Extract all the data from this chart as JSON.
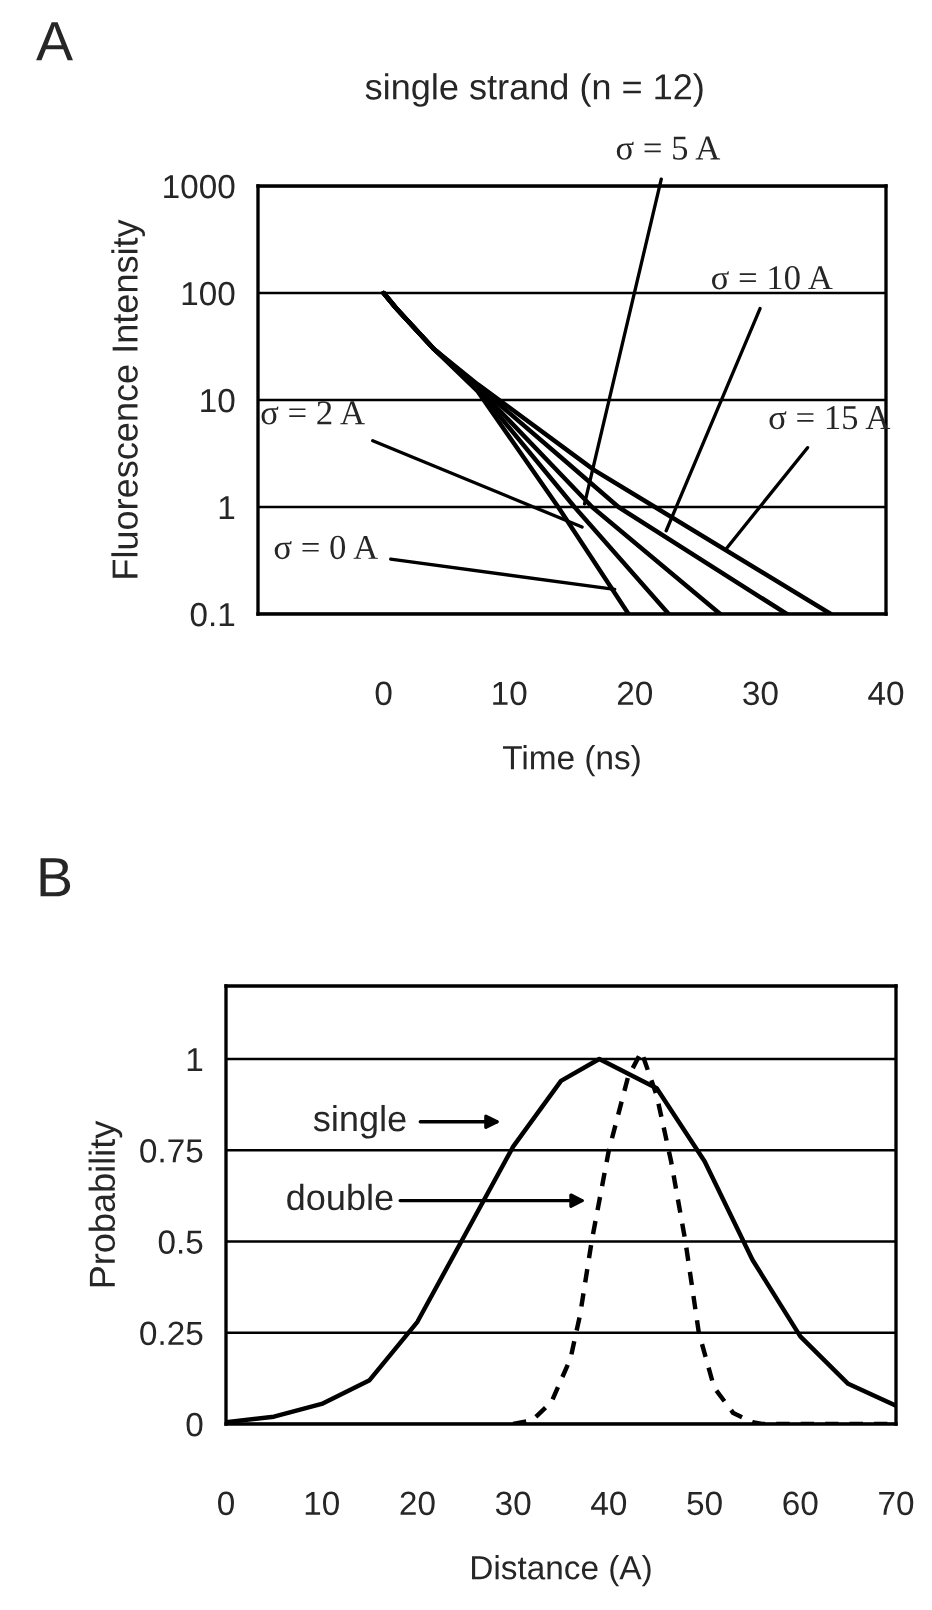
{
  "chart_data": [
    {
      "type": "line",
      "title": "A",
      "subtitle": "single strand (n = 12)",
      "xlabel": "Time (ns)",
      "ylabel": "Fluorescence Intensity",
      "log": "y",
      "xlim": [
        -10,
        40
      ],
      "xticks": [
        0,
        10,
        20,
        30,
        40
      ],
      "ylim": [
        0.1,
        1000
      ],
      "yticks": [
        0.1,
        1,
        10,
        100,
        1000
      ],
      "grid": "y",
      "line_style": "solid",
      "series": [
        {
          "color": "#000000",
          "x": [
            0,
            1,
            4,
            7.5,
            13.9,
            19.5
          ],
          "values": [
            100,
            72,
            30,
            12,
            1,
            0.1
          ]
        },
        {
          "color": "#000000",
          "x": [
            0,
            1,
            4,
            7.5,
            15.2,
            22.7
          ],
          "values": [
            100,
            72,
            30,
            12.5,
            1,
            0.1
          ]
        },
        {
          "color": "#000000",
          "x": [
            0,
            1,
            4,
            7.5,
            16.6,
            26.8
          ],
          "values": [
            100,
            72,
            30,
            13,
            1,
            0.1
          ]
        },
        {
          "color": "#000000",
          "x": [
            0,
            1,
            4,
            7.5,
            14,
            18.7,
            32.1
          ],
          "values": [
            100,
            72,
            30,
            13.5,
            3,
            1,
            0.1
          ]
        },
        {
          "color": "#000000",
          "x": [
            0,
            1,
            4,
            7.5,
            16.8,
            21.6,
            35.6
          ],
          "values": [
            100,
            72,
            30,
            14,
            2.2,
            1,
            0.1
          ]
        }
      ],
      "annotations": [
        {
          "text": "σ = 5 A",
          "x": 16,
          "y": 1.07
        },
        {
          "text": "σ = 10 A",
          "x": 22.5,
          "y": 0.6
        },
        {
          "text": "σ = 15 A",
          "x": 27.3,
          "y": 0.41
        },
        {
          "text": "σ = 2 A",
          "x": 15.8,
          "y": 0.65
        },
        {
          "text": "σ = 0 A",
          "x": 18.4,
          "y": 0.17
        }
      ]
    },
    {
      "type": "line",
      "title": "B",
      "xlabel": "Distance (A)",
      "ylabel": "Probability",
      "xlim": [
        0,
        70
      ],
      "xticks": [
        0,
        10,
        20,
        30,
        40,
        50,
        60,
        70
      ],
      "ylim": [
        0,
        1.2
      ],
      "yticks": [
        0,
        0.25,
        0.5,
        0.75,
        1
      ],
      "grid": "y",
      "series": [
        {
          "color": "#000000",
          "line_style": "solid",
          "x": [
            0,
            5,
            10,
            15,
            20,
            25,
            30,
            35,
            39,
            45,
            50,
            55,
            60,
            65,
            70
          ],
          "values": [
            0.005,
            0.02,
            0.055,
            0.12,
            0.28,
            0.52,
            0.76,
            0.94,
            1.0,
            0.92,
            0.72,
            0.45,
            0.24,
            0.11,
            0.05
          ]
        },
        {
          "color": "#000000",
          "line_style": "dashed",
          "x": [
            30,
            32,
            34,
            36,
            37,
            38.2,
            40,
            42,
            43.4,
            45,
            46.5,
            48,
            49.4,
            51,
            53,
            55,
            56,
            70
          ],
          "values": [
            0,
            0.01,
            0.06,
            0.18,
            0.3,
            0.5,
            0.75,
            0.95,
            1.02,
            0.9,
            0.72,
            0.5,
            0.25,
            0.1,
            0.03,
            0.005,
            0,
            0
          ]
        }
      ],
      "annotations": [
        "single",
        "double"
      ]
    }
  ]
}
